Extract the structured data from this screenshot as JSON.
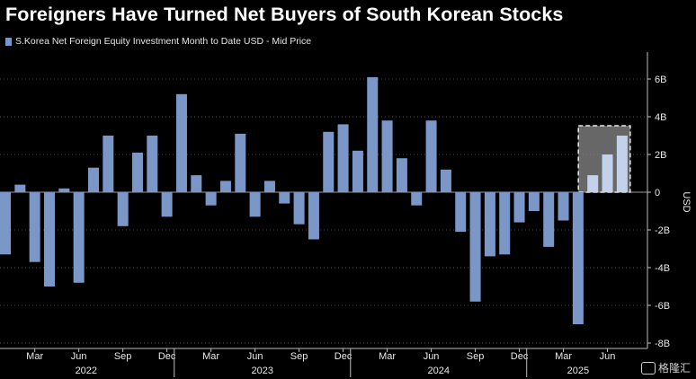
{
  "header": {
    "title": "Foreigners Have Turned Net Buyers of South Korean Stocks"
  },
  "legend": {
    "label": "S.Korea Net Foreign Equity Investment Month to Date USD - Mid Price"
  },
  "watermark": {
    "text": "格隆汇"
  },
  "chart_data": {
    "type": "bar",
    "title": "Foreigners Have Turned Net Buyers of South Korean Stocks",
    "ylabel": "USD",
    "ylim": [
      -8.2,
      7
    ],
    "y_ticks": [
      6,
      4,
      2,
      0,
      -2,
      -4,
      -6,
      -8
    ],
    "y_tick_labels": [
      "6B",
      "4B",
      "2B",
      "0",
      "-2B",
      "-4B",
      "-6B",
      "-8B"
    ],
    "month_tick_labels": [
      "Mar",
      "Jun",
      "Sep",
      "Dec",
      "Mar",
      "Jun",
      "Sep",
      "Dec",
      "Mar",
      "Jun",
      "Sep",
      "Dec",
      "Mar",
      "Jun"
    ],
    "year_labels": [
      "2022",
      "2023",
      "2024",
      "2025"
    ],
    "bar_color": "#7b97c8",
    "highlight_color": "#c3d2ea",
    "series": [
      {
        "values": [
          -3.3,
          0.4,
          -3.7,
          -5.0,
          0.2,
          -4.8,
          1.3,
          3.0,
          -1.8,
          2.1,
          3.0,
          -1.3,
          5.2,
          0.9,
          -0.7,
          0.6,
          3.1,
          -1.3,
          0.6,
          -0.6,
          -1.7,
          -2.5,
          3.2,
          3.6,
          2.2,
          6.1,
          3.8,
          1.8,
          -0.7,
          3.8,
          1.2,
          -2.1,
          -5.8,
          -3.4,
          -3.3,
          -1.6,
          -1.0,
          -2.9,
          -1.5,
          -7.0,
          0.9,
          2.0,
          3.0
        ]
      }
    ],
    "highlighted_last": 3
  }
}
